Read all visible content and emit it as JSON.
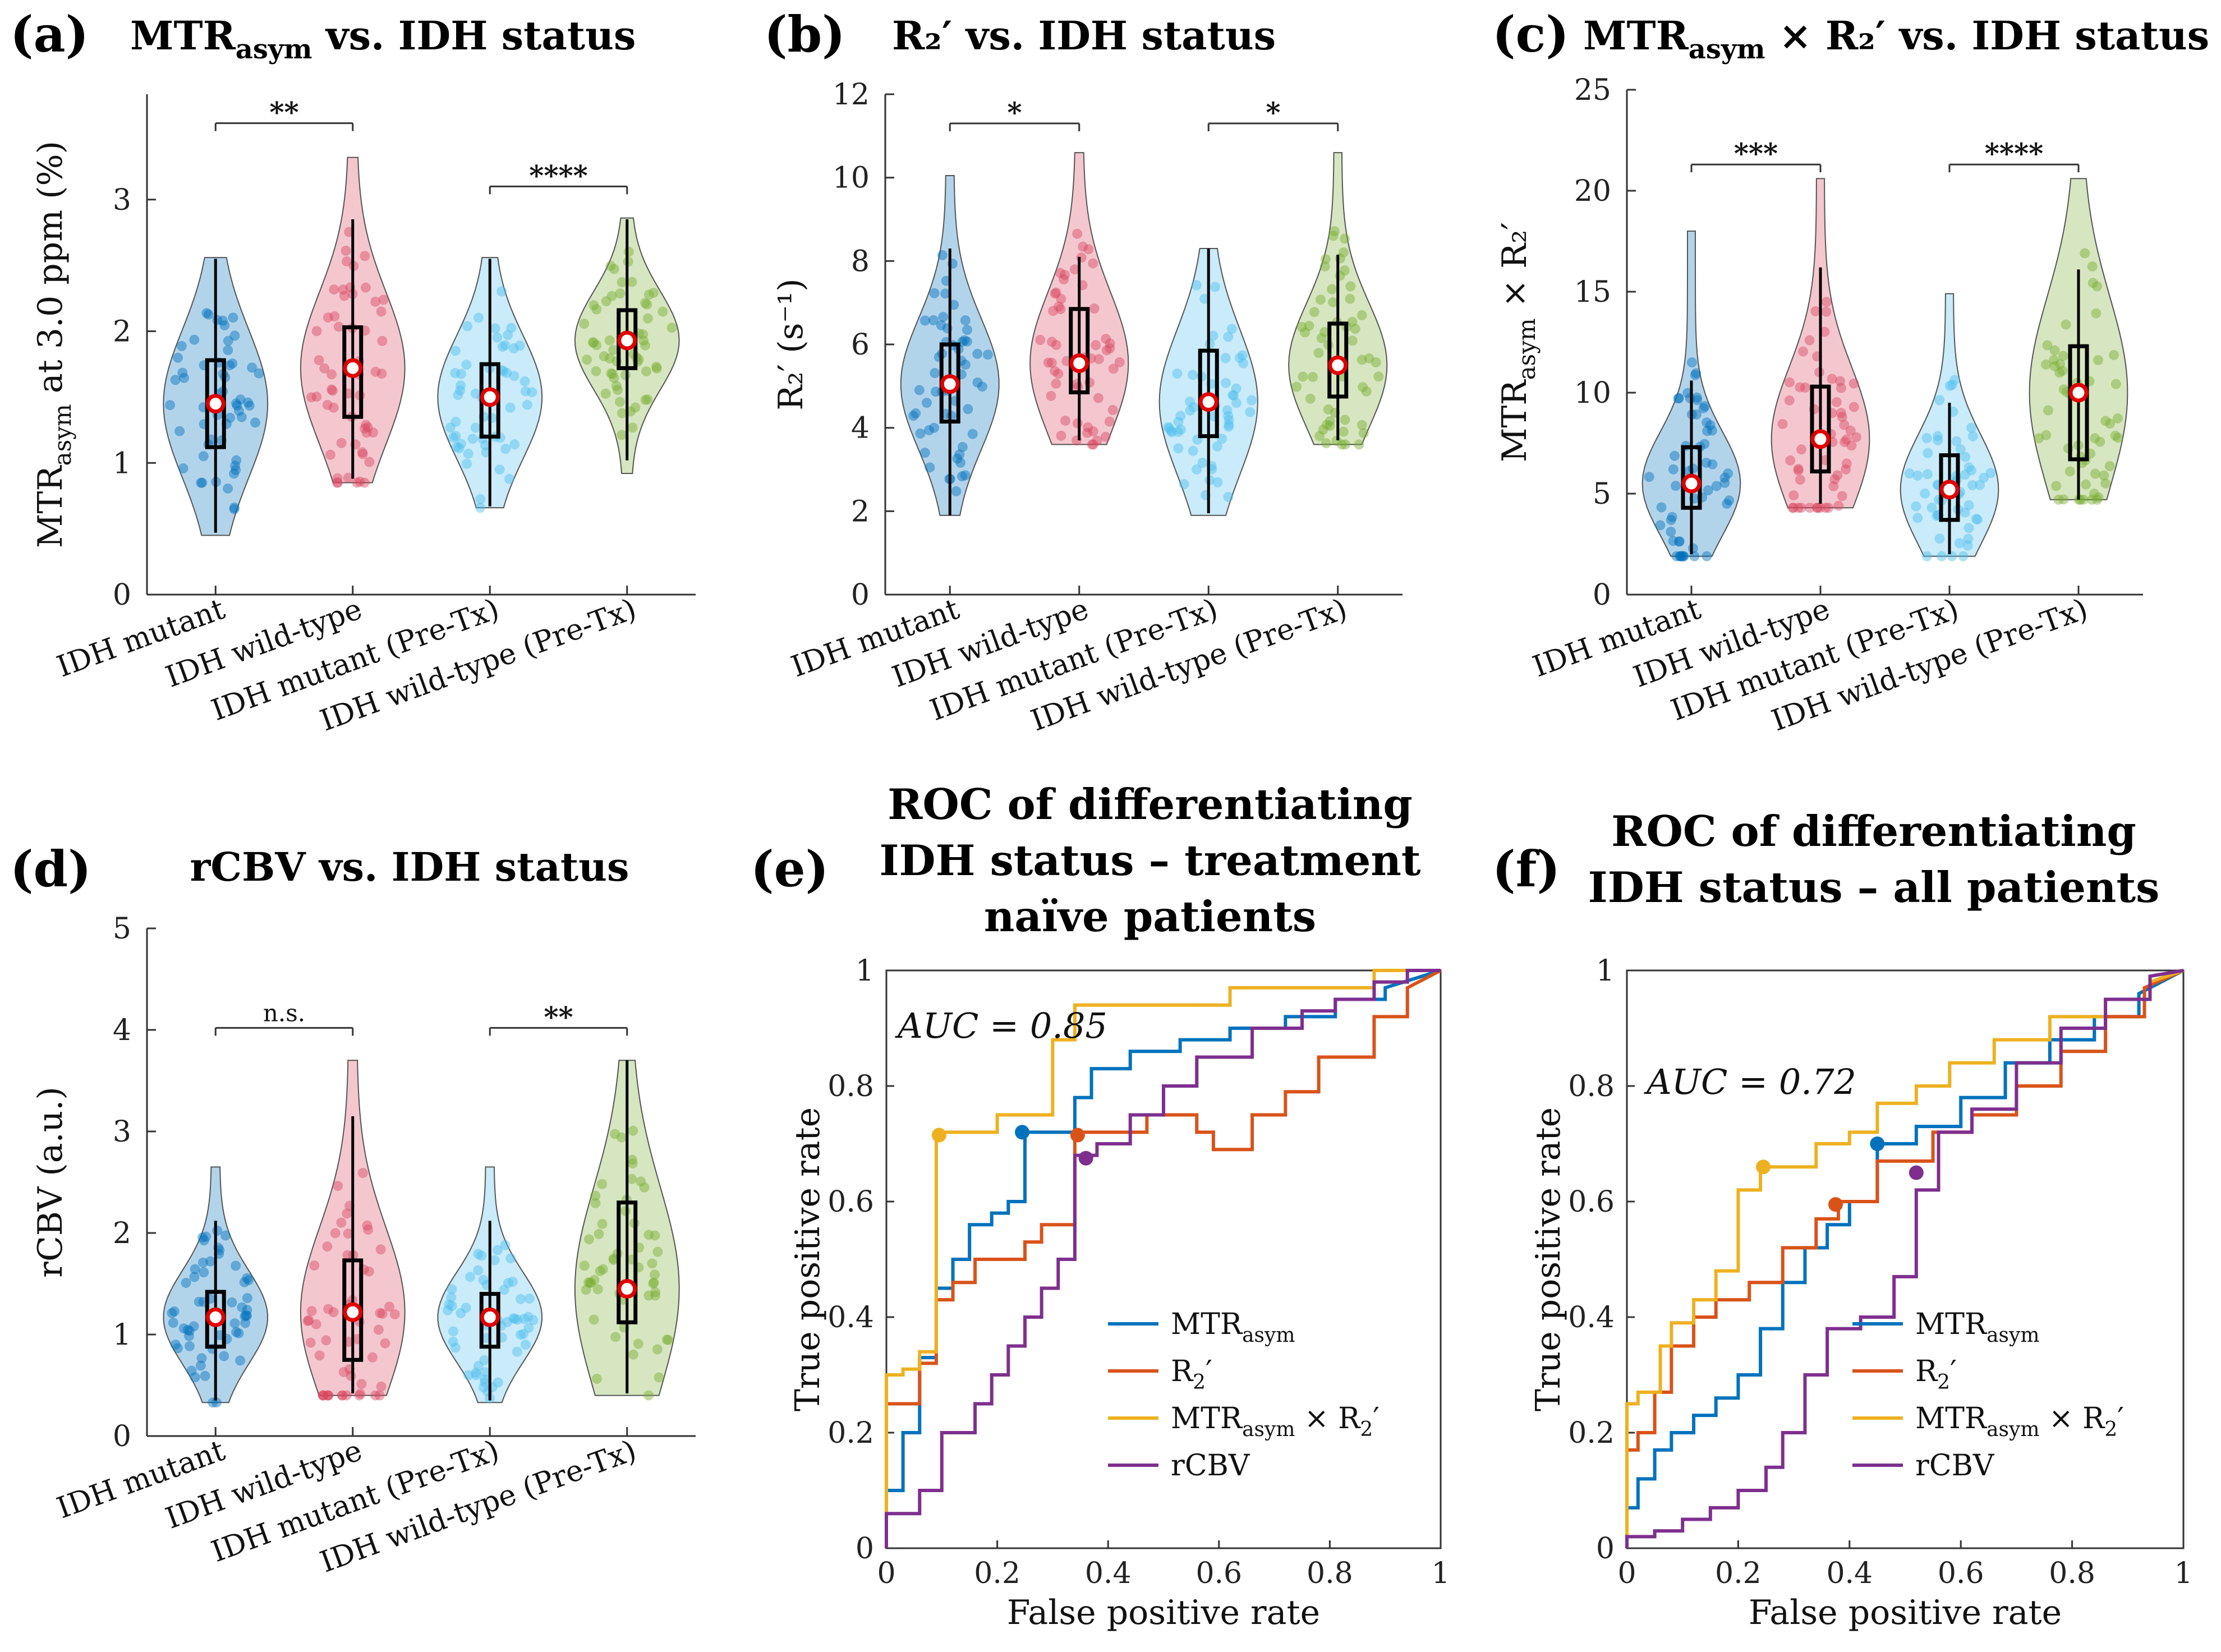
{
  "panels": {
    "a": {
      "label": "(a)",
      "title_main": "MTR",
      "title_sub": "asym",
      "title_rest": " vs. IDH status"
    },
    "b": {
      "label": "(b)",
      "title": "R₂′ vs. IDH status"
    },
    "c": {
      "label": "(c)",
      "title_main": "MTR",
      "title_sub": "asym",
      "title_rest": " × R₂′ vs. IDH status"
    },
    "d": {
      "label": "(d)",
      "title": "rCBV vs. IDH status"
    },
    "e": {
      "label": "(e)",
      "title_lines": [
        "ROC of differentiating",
        "IDH status – treatment",
        "naïve patients"
      ]
    },
    "f": {
      "label": "(f)",
      "title_lines": [
        "ROC of differentiating",
        "IDH status – all patients"
      ]
    }
  },
  "colors": {
    "mutant": "#0072BD",
    "wildtype": "#D9465F",
    "mutant_pretx": "#4DBEEE",
    "wildtype_pretx": "#77AC30",
    "roc_mtr": "#0072BD",
    "roc_r2": "#D95319",
    "roc_prod": "#EDB120",
    "roc_rcbv": "#7E2F8E"
  },
  "chart_data": [
    {
      "id": "a",
      "type": "violin",
      "title": "MTRasym vs. IDH status",
      "ylabel_main": "MTR",
      "ylabel_sub": "asym",
      "ylabel_rest": " at 3.0 ppm (%)",
      "categories": [
        "IDH mutant",
        "IDH wild-type",
        "IDH mutant (Pre-Tx)",
        "IDH wild-type (Pre-Tx)"
      ],
      "ylim": [
        0,
        3.8
      ],
      "yticks": [
        0,
        1,
        2,
        3
      ],
      "groups": [
        {
          "median": 1.45,
          "q1": 1.12,
          "q3": 1.78,
          "wlo": 0.47,
          "whi": 2.55,
          "min": 0.45,
          "max": 2.56
        },
        {
          "median": 1.72,
          "q1": 1.35,
          "q3": 2.03,
          "wlo": 0.88,
          "whi": 2.85,
          "min": 0.85,
          "max": 3.32
        },
        {
          "median": 1.5,
          "q1": 1.2,
          "q3": 1.75,
          "wlo": 0.67,
          "whi": 2.55,
          "min": 0.66,
          "max": 2.56
        },
        {
          "median": 1.93,
          "q1": 1.72,
          "q3": 2.16,
          "wlo": 1.02,
          "whi": 2.85,
          "min": 0.92,
          "max": 2.86
        }
      ],
      "significance": [
        {
          "pair": [
            0,
            1
          ],
          "label": "**",
          "y": 3.58
        },
        {
          "pair": [
            2,
            3
          ],
          "label": "****",
          "y": 3.1
        }
      ]
    },
    {
      "id": "b",
      "type": "violin",
      "title": "R2′ vs. IDH status",
      "ylabel": "R₂′ (s⁻¹)",
      "categories": [
        "IDH mutant",
        "IDH wild-type",
        "IDH mutant (Pre-Tx)",
        "IDH wild-type (Pre-Tx)"
      ],
      "ylim": [
        0,
        12
      ],
      "yticks": [
        0,
        2,
        4,
        6,
        8,
        10,
        12
      ],
      "groups": [
        {
          "median": 5.05,
          "q1": 4.15,
          "q3": 6.0,
          "wlo": 1.9,
          "whi": 8.3,
          "min": 1.9,
          "max": 10.05
        },
        {
          "median": 5.55,
          "q1": 4.85,
          "q3": 6.85,
          "wlo": 3.7,
          "whi": 8.1,
          "min": 3.6,
          "max": 10.6
        },
        {
          "median": 4.62,
          "q1": 3.8,
          "q3": 5.85,
          "wlo": 1.95,
          "whi": 8.3,
          "min": 1.9,
          "max": 8.3
        },
        {
          "median": 5.5,
          "q1": 4.75,
          "q3": 6.5,
          "wlo": 3.7,
          "whi": 8.15,
          "min": 3.6,
          "max": 10.6
        }
      ],
      "significance": [
        {
          "pair": [
            0,
            1
          ],
          "label": "*",
          "y": 11.3
        },
        {
          "pair": [
            2,
            3
          ],
          "label": "*",
          "y": 11.3
        }
      ]
    },
    {
      "id": "c",
      "type": "violin",
      "title": "MTRasym × R2′ vs. IDH status",
      "ylabel_main": "MTR",
      "ylabel_sub": "asym",
      "ylabel_rest": " × R₂′",
      "categories": [
        "IDH mutant",
        "IDH wild-type",
        "IDH mutant (Pre-Tx)",
        "IDH wild-type (Pre-Tx)"
      ],
      "ylim": [
        0,
        25
      ],
      "yticks": [
        0,
        5,
        10,
        15,
        20,
        25
      ],
      "groups": [
        {
          "median": 5.5,
          "q1": 4.3,
          "q3": 7.3,
          "wlo": 2.0,
          "whi": 10.6,
          "min": 1.9,
          "max": 18.0
        },
        {
          "median": 7.7,
          "q1": 6.1,
          "q3": 10.3,
          "wlo": 4.5,
          "whi": 16.2,
          "min": 4.3,
          "max": 20.6
        },
        {
          "median": 5.2,
          "q1": 3.7,
          "q3": 6.9,
          "wlo": 2.0,
          "whi": 9.5,
          "min": 1.9,
          "max": 14.9
        },
        {
          "median": 10.0,
          "q1": 6.7,
          "q3": 12.3,
          "wlo": 4.7,
          "whi": 16.1,
          "min": 4.7,
          "max": 20.6
        }
      ],
      "significance": [
        {
          "pair": [
            0,
            1
          ],
          "label": "***",
          "y": 21.3
        },
        {
          "pair": [
            2,
            3
          ],
          "label": "****",
          "y": 21.3
        }
      ]
    },
    {
      "id": "d",
      "type": "violin",
      "title": "rCBV vs. IDH status",
      "ylabel": "rCBV (a.u.)",
      "categories": [
        "IDH mutant",
        "IDH wild-type",
        "IDH mutant (Pre-Tx)",
        "IDH wild-type (Pre-Tx)"
      ],
      "ylim": [
        0,
        5
      ],
      "yticks": [
        0,
        1,
        2,
        3,
        4,
        5
      ],
      "groups": [
        {
          "median": 1.17,
          "q1": 0.88,
          "q3": 1.42,
          "wlo": 0.35,
          "whi": 2.12,
          "min": 0.33,
          "max": 2.65
        },
        {
          "median": 1.22,
          "q1": 0.75,
          "q3": 1.73,
          "wlo": 0.42,
          "whi": 3.15,
          "min": 0.4,
          "max": 3.7
        },
        {
          "median": 1.17,
          "q1": 0.88,
          "q3": 1.4,
          "wlo": 0.35,
          "whi": 2.12,
          "min": 0.33,
          "max": 2.65
        },
        {
          "median": 1.45,
          "q1": 1.12,
          "q3": 2.3,
          "wlo": 0.42,
          "whi": 3.7,
          "min": 0.4,
          "max": 3.7
        }
      ],
      "significance": [
        {
          "pair": [
            0,
            1
          ],
          "label": "n.s.",
          "y": 4.02
        },
        {
          "pair": [
            2,
            3
          ],
          "label": "**",
          "y": 4.02
        }
      ]
    },
    {
      "id": "e",
      "type": "line",
      "xlabel": "False positive rate",
      "ylabel": "True positive rate",
      "xlim": [
        0,
        1
      ],
      "ylim": [
        0,
        1
      ],
      "ticks": [
        0,
        0.2,
        0.4,
        0.6,
        0.8,
        1
      ],
      "annotation": "AUC = 0.85",
      "legend": [
        "MTRasym",
        "R2′",
        "MTRasym × R2′",
        "rCBV"
      ],
      "series": [
        {
          "name": "MTRasym",
          "x": [
            0,
            0,
            0.03,
            0.03,
            0.06,
            0.06,
            0.09,
            0.09,
            0.12,
            0.12,
            0.15,
            0.15,
            0.19,
            0.19,
            0.22,
            0.22,
            0.25,
            0.25,
            0.34,
            0.34,
            0.37,
            0.37,
            0.44,
            0.44,
            0.53,
            0.53,
            0.62,
            0.62,
            0.72,
            0.72,
            0.81,
            0.81,
            0.9,
            0.9,
            1
          ],
          "y": [
            0,
            0.1,
            0.1,
            0.2,
            0.2,
            0.33,
            0.33,
            0.45,
            0.45,
            0.5,
            0.5,
            0.56,
            0.56,
            0.58,
            0.58,
            0.6,
            0.6,
            0.72,
            0.72,
            0.78,
            0.78,
            0.83,
            0.83,
            0.86,
            0.86,
            0.88,
            0.88,
            0.9,
            0.9,
            0.92,
            0.92,
            0.95,
            0.95,
            0.97,
            1
          ]
        },
        {
          "name": "R2′",
          "x": [
            0,
            0,
            0.06,
            0.06,
            0.09,
            0.09,
            0.12,
            0.12,
            0.16,
            0.16,
            0.2,
            0.2,
            0.25,
            0.25,
            0.28,
            0.28,
            0.34,
            0.34,
            0.47,
            0.47,
            0.56,
            0.56,
            0.59,
            0.59,
            0.66,
            0.66,
            0.72,
            0.72,
            0.78,
            0.78,
            0.88,
            0.88,
            0.94,
            0.94,
            1
          ],
          "y": [
            0,
            0.25,
            0.25,
            0.32,
            0.32,
            0.43,
            0.43,
            0.46,
            0.46,
            0.5,
            0.5,
            0.5,
            0.5,
            0.53,
            0.53,
            0.56,
            0.56,
            0.72,
            0.72,
            0.75,
            0.75,
            0.72,
            0.72,
            0.69,
            0.69,
            0.75,
            0.75,
            0.79,
            0.79,
            0.85,
            0.85,
            0.92,
            0.92,
            0.97,
            1
          ]
        },
        {
          "name": "MTRasym × R2′",
          "x": [
            0,
            0,
            0.03,
            0.03,
            0.06,
            0.06,
            0.09,
            0.09,
            0.15,
            0.15,
            0.2,
            0.2,
            0.25,
            0.25,
            0.3,
            0.3,
            0.34,
            0.34,
            0.38,
            0.38,
            0.5,
            0.5,
            0.62,
            0.62,
            0.78,
            0.78,
            0.88,
            0.88,
            0.94,
            0.94,
            1
          ],
          "y": [
            0,
            0.3,
            0.3,
            0.31,
            0.31,
            0.34,
            0.34,
            0.72,
            0.72,
            0.72,
            0.72,
            0.75,
            0.75,
            0.75,
            0.75,
            0.88,
            0.88,
            0.94,
            0.94,
            0.94,
            0.94,
            0.94,
            0.94,
            0.97,
            0.97,
            0.97,
            0.97,
            1,
            1,
            1,
            1
          ]
        },
        {
          "name": "rCBV",
          "x": [
            0,
            0,
            0.06,
            0.06,
            0.1,
            0.1,
            0.16,
            0.16,
            0.19,
            0.19,
            0.22,
            0.22,
            0.25,
            0.25,
            0.28,
            0.28,
            0.31,
            0.31,
            0.34,
            0.34,
            0.38,
            0.38,
            0.44,
            0.44,
            0.5,
            0.5,
            0.56,
            0.56,
            0.66,
            0.66,
            0.75,
            0.75,
            0.81,
            0.81,
            0.88,
            0.88,
            0.94,
            0.94,
            1
          ],
          "y": [
            0,
            0.06,
            0.06,
            0.1,
            0.1,
            0.2,
            0.2,
            0.25,
            0.25,
            0.3,
            0.3,
            0.35,
            0.35,
            0.4,
            0.4,
            0.45,
            0.45,
            0.5,
            0.5,
            0.68,
            0.68,
            0.7,
            0.7,
            0.75,
            0.75,
            0.8,
            0.8,
            0.85,
            0.85,
            0.9,
            0.9,
            0.93,
            0.93,
            0.95,
            0.95,
            0.98,
            0.98,
            1,
            1
          ]
        }
      ],
      "operating_points": [
        {
          "series": 0,
          "x": 0.245,
          "y": 0.72
        },
        {
          "series": 1,
          "x": 0.345,
          "y": 0.715
        },
        {
          "series": 2,
          "x": 0.095,
          "y": 0.715
        },
        {
          "series": 3,
          "x": 0.36,
          "y": 0.675
        }
      ]
    },
    {
      "id": "f",
      "type": "line",
      "xlabel": "False positive rate",
      "ylabel": "True positive rate",
      "xlim": [
        0,
        1
      ],
      "ylim": [
        0,
        1
      ],
      "ticks": [
        0,
        0.2,
        0.4,
        0.6,
        0.8,
        1
      ],
      "annotation": "AUC = 0.72",
      "legend": [
        "MTRasym",
        "R2′",
        "MTRasym × R2′",
        "rCBV"
      ],
      "series": [
        {
          "name": "MTRasym",
          "x": [
            0,
            0,
            0.02,
            0.02,
            0.05,
            0.05,
            0.08,
            0.08,
            0.12,
            0.12,
            0.16,
            0.16,
            0.2,
            0.2,
            0.24,
            0.24,
            0.28,
            0.28,
            0.32,
            0.32,
            0.36,
            0.36,
            0.4,
            0.4,
            0.45,
            0.45,
            0.52,
            0.52,
            0.6,
            0.6,
            0.68,
            0.68,
            0.76,
            0.76,
            0.84,
            0.84,
            0.92,
            0.92,
            1
          ],
          "y": [
            0,
            0.07,
            0.07,
            0.12,
            0.12,
            0.17,
            0.17,
            0.2,
            0.2,
            0.23,
            0.23,
            0.26,
            0.26,
            0.3,
            0.3,
            0.38,
            0.38,
            0.46,
            0.46,
            0.52,
            0.52,
            0.56,
            0.56,
            0.6,
            0.6,
            0.7,
            0.7,
            0.73,
            0.73,
            0.78,
            0.78,
            0.84,
            0.84,
            0.88,
            0.88,
            0.92,
            0.92,
            0.96,
            1
          ]
        },
        {
          "name": "R2′",
          "x": [
            0,
            0,
            0.02,
            0.02,
            0.05,
            0.05,
            0.08,
            0.08,
            0.12,
            0.12,
            0.16,
            0.16,
            0.22,
            0.22,
            0.28,
            0.28,
            0.34,
            0.34,
            0.38,
            0.38,
            0.45,
            0.45,
            0.55,
            0.55,
            0.62,
            0.62,
            0.7,
            0.7,
            0.78,
            0.78,
            0.86,
            0.86,
            0.93,
            0.93,
            1
          ],
          "y": [
            0,
            0.17,
            0.17,
            0.2,
            0.2,
            0.27,
            0.27,
            0.35,
            0.35,
            0.4,
            0.4,
            0.43,
            0.43,
            0.46,
            0.46,
            0.52,
            0.52,
            0.57,
            0.57,
            0.6,
            0.6,
            0.67,
            0.67,
            0.72,
            0.72,
            0.75,
            0.75,
            0.8,
            0.8,
            0.86,
            0.86,
            0.92,
            0.92,
            0.97,
            1
          ]
        },
        {
          "name": "MTRasym × R2′",
          "x": [
            0,
            0,
            0.02,
            0.02,
            0.06,
            0.06,
            0.08,
            0.08,
            0.12,
            0.12,
            0.16,
            0.16,
            0.2,
            0.2,
            0.24,
            0.24,
            0.34,
            0.34,
            0.4,
            0.4,
            0.45,
            0.45,
            0.52,
            0.52,
            0.58,
            0.58,
            0.66,
            0.66,
            0.76,
            0.76,
            0.86,
            0.86,
            0.94,
            0.94,
            1
          ],
          "y": [
            0,
            0.25,
            0.25,
            0.27,
            0.27,
            0.35,
            0.35,
            0.39,
            0.39,
            0.43,
            0.43,
            0.48,
            0.48,
            0.62,
            0.62,
            0.66,
            0.66,
            0.7,
            0.7,
            0.72,
            0.72,
            0.77,
            0.77,
            0.8,
            0.8,
            0.84,
            0.84,
            0.88,
            0.88,
            0.92,
            0.92,
            0.95,
            0.95,
            0.98,
            1
          ]
        },
        {
          "name": "rCBV",
          "x": [
            0,
            0,
            0.05,
            0.05,
            0.1,
            0.1,
            0.15,
            0.15,
            0.2,
            0.2,
            0.25,
            0.25,
            0.28,
            0.28,
            0.32,
            0.32,
            0.36,
            0.36,
            0.42,
            0.42,
            0.48,
            0.48,
            0.52,
            0.52,
            0.56,
            0.56,
            0.62,
            0.62,
            0.7,
            0.7,
            0.78,
            0.78,
            0.86,
            0.86,
            0.94,
            0.94,
            1
          ],
          "y": [
            0,
            0.02,
            0.02,
            0.03,
            0.03,
            0.05,
            0.05,
            0.07,
            0.07,
            0.1,
            0.1,
            0.14,
            0.14,
            0.2,
            0.2,
            0.3,
            0.3,
            0.38,
            0.38,
            0.4,
            0.4,
            0.47,
            0.47,
            0.62,
            0.62,
            0.72,
            0.72,
            0.76,
            0.76,
            0.84,
            0.84,
            0.9,
            0.9,
            0.95,
            0.95,
            0.99,
            1
          ]
        }
      ],
      "operating_points": [
        {
          "series": 0,
          "x": 0.45,
          "y": 0.7
        },
        {
          "series": 1,
          "x": 0.375,
          "y": 0.595
        },
        {
          "series": 2,
          "x": 0.245,
          "y": 0.66
        },
        {
          "series": 3,
          "x": 0.52,
          "y": 0.65
        }
      ]
    }
  ]
}
